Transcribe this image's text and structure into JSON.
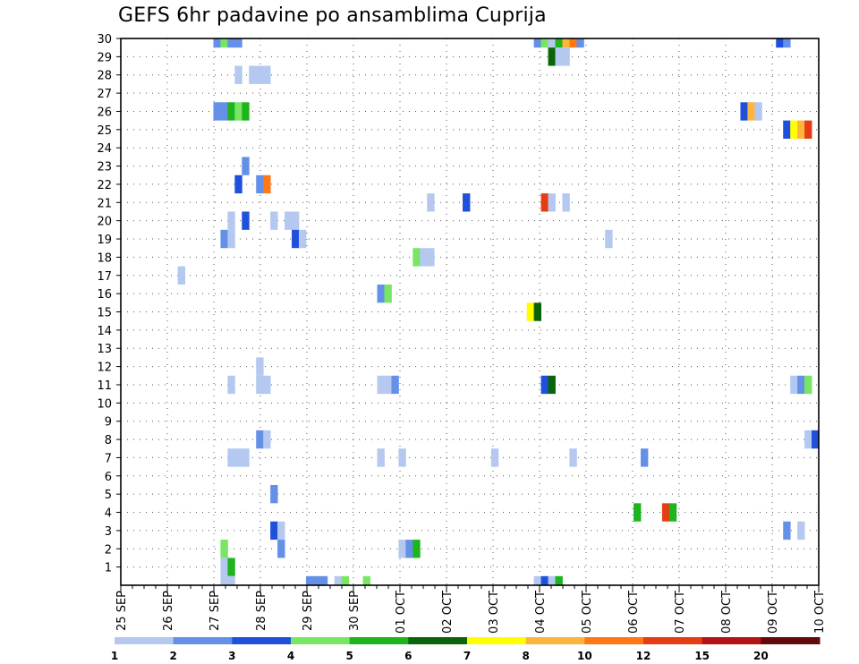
{
  "chart_data": {
    "type": "heatmap",
    "title": "GEFS 6hr padavine po ansamblima Cuprija",
    "xlabel": "",
    "ylabel": "",
    "x_tick_labels": [
      "25 SEP",
      "26 SEP",
      "27 SEP",
      "28 SEP",
      "29 SEP",
      "30 SEP",
      "01 OCT",
      "02 OCT",
      "03 OCT",
      "04 OCT",
      "05 OCT",
      "06 OCT",
      "07 OCT",
      "08 OCT",
      "09 OCT",
      "10 OCT"
    ],
    "y_tick_labels": [
      "1",
      "2",
      "3",
      "4",
      "5",
      "6",
      "7",
      "8",
      "9",
      "10",
      "11",
      "12",
      "13",
      "14",
      "15",
      "16",
      "17",
      "18",
      "19",
      "20",
      "21",
      "22",
      "23",
      "24",
      "25",
      "26",
      "27",
      "28",
      "29",
      "30"
    ],
    "x_range": [
      "25 SEP 00Z",
      "10 OCT 00Z"
    ],
    "x_step_hours": 6,
    "y_range": [
      0,
      30
    ],
    "grid": true,
    "colorbar": {
      "position": "bottom",
      "levels": [
        "1",
        "2",
        "3",
        "4",
        "5",
        "6",
        "7",
        "8",
        "10",
        "12",
        "15",
        "20"
      ],
      "colors": [
        "#b4c8f0",
        "#6490e8",
        "#1e50dc",
        "#78e664",
        "#1eb41e",
        "#0a640a",
        "#ffff00",
        "#ffb43c",
        "#ff7814",
        "#e63c14",
        "#b41414",
        "#640a0a"
      ]
    },
    "series": [
      {
        "member": 30,
        "cells": [
          [
            13,
            2
          ],
          [
            14,
            4
          ],
          [
            15,
            2
          ],
          [
            16,
            2
          ],
          [
            58,
            2
          ],
          [
            59,
            4
          ],
          [
            60,
            1
          ],
          [
            61,
            5
          ],
          [
            62,
            8
          ],
          [
            63,
            9
          ],
          [
            64,
            2
          ],
          [
            92,
            3
          ],
          [
            93,
            2
          ]
        ]
      },
      {
        "member": 29,
        "cells": [
          [
            60,
            6
          ],
          [
            61,
            1
          ],
          [
            62,
            1
          ]
        ]
      },
      {
        "member": 28,
        "cells": [
          [
            16,
            1
          ],
          [
            18,
            1
          ],
          [
            19,
            1
          ],
          [
            20,
            1
          ]
        ]
      },
      {
        "member": 26,
        "cells": [
          [
            13,
            2
          ],
          [
            14,
            2
          ],
          [
            15,
            5
          ],
          [
            16,
            4
          ],
          [
            17,
            5
          ],
          [
            87,
            3
          ],
          [
            88,
            8
          ],
          [
            89,
            1
          ]
        ]
      },
      {
        "member": 25,
        "cells": [
          [
            93,
            3
          ],
          [
            94,
            7
          ],
          [
            95,
            8
          ],
          [
            96,
            10
          ]
        ]
      },
      {
        "member": 23,
        "cells": [
          [
            17,
            2
          ]
        ]
      },
      {
        "member": 22,
        "cells": [
          [
            16,
            3
          ],
          [
            19,
            2
          ],
          [
            20,
            9
          ]
        ]
      },
      {
        "member": 21,
        "cells": [
          [
            43,
            1
          ],
          [
            48,
            3
          ],
          [
            59,
            10
          ],
          [
            60,
            1
          ],
          [
            62,
            1
          ]
        ]
      },
      {
        "member": 20,
        "cells": [
          [
            15,
            1
          ],
          [
            17,
            3
          ],
          [
            21,
            1
          ],
          [
            23,
            1
          ],
          [
            24,
            1
          ]
        ]
      },
      {
        "member": 19,
        "cells": [
          [
            14,
            2
          ],
          [
            15,
            1
          ],
          [
            24,
            3
          ],
          [
            25,
            1
          ],
          [
            68,
            1
          ]
        ]
      },
      {
        "member": 18,
        "cells": [
          [
            41,
            4
          ],
          [
            42,
            1
          ],
          [
            43,
            1
          ]
        ]
      },
      {
        "member": 17,
        "cells": [
          [
            8,
            1
          ]
        ]
      },
      {
        "member": 16,
        "cells": [
          [
            36,
            2
          ],
          [
            37,
            4
          ]
        ]
      },
      {
        "member": 15,
        "cells": [
          [
            57,
            7
          ],
          [
            58,
            6
          ]
        ]
      },
      {
        "member": 12,
        "cells": [
          [
            19,
            1
          ]
        ]
      },
      {
        "member": 11,
        "cells": [
          [
            15,
            1
          ],
          [
            19,
            1
          ],
          [
            20,
            1
          ],
          [
            36,
            1
          ],
          [
            37,
            1
          ],
          [
            38,
            2
          ],
          [
            59,
            3
          ],
          [
            60,
            6
          ],
          [
            94,
            1
          ],
          [
            95,
            2
          ],
          [
            96,
            4
          ]
        ]
      },
      {
        "member": 8,
        "cells": [
          [
            19,
            2
          ],
          [
            20,
            1
          ],
          [
            96,
            1
          ],
          [
            97,
            3
          ]
        ]
      },
      {
        "member": 7,
        "cells": [
          [
            15,
            1
          ],
          [
            16,
            1
          ],
          [
            17,
            1
          ],
          [
            36,
            1
          ],
          [
            39,
            1
          ],
          [
            52,
            1
          ],
          [
            63,
            1
          ],
          [
            73,
            2
          ]
        ]
      },
      {
        "member": 5,
        "cells": [
          [
            21,
            2
          ]
        ]
      },
      {
        "member": 4,
        "cells": [
          [
            72,
            5
          ],
          [
            76,
            10
          ],
          [
            77,
            5
          ]
        ]
      },
      {
        "member": 3,
        "cells": [
          [
            21,
            3
          ],
          [
            22,
            1
          ],
          [
            93,
            2
          ],
          [
            95,
            1
          ]
        ]
      },
      {
        "member": 2,
        "cells": [
          [
            14,
            4
          ],
          [
            22,
            2
          ],
          [
            39,
            1
          ],
          [
            40,
            2
          ],
          [
            41,
            5
          ]
        ]
      },
      {
        "member": 1,
        "cells": [
          [
            14,
            1
          ],
          [
            15,
            5
          ]
        ]
      },
      {
        "member": 0,
        "cells": [
          [
            14,
            1
          ],
          [
            15,
            1
          ],
          [
            26,
            2
          ],
          [
            27,
            2
          ],
          [
            28,
            2
          ],
          [
            30,
            1
          ],
          [
            31,
            4
          ],
          [
            34,
            4
          ],
          [
            58,
            1
          ],
          [
            59,
            3
          ],
          [
            60,
            1
          ],
          [
            61,
            5
          ]
        ]
      }
    ]
  }
}
